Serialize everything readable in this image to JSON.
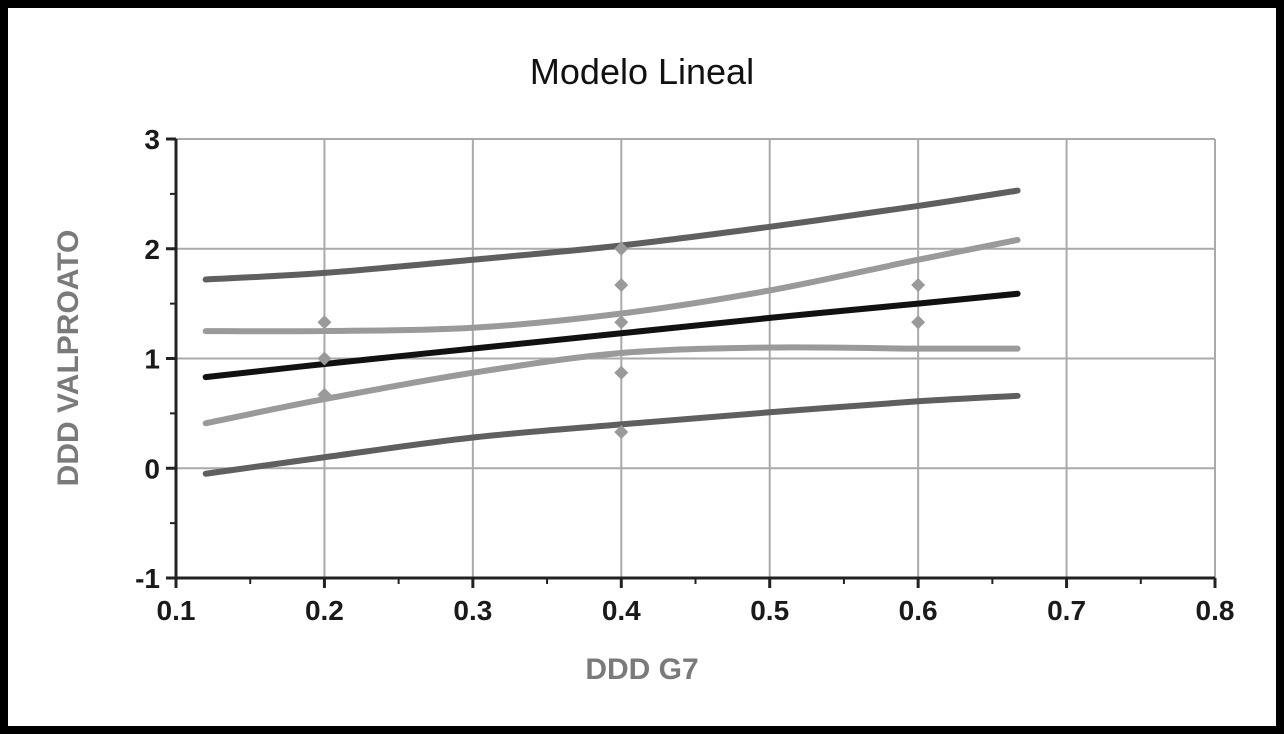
{
  "chart_data": {
    "type": "line",
    "title": "Modelo Lineal",
    "xlabel": "DDD G7",
    "ylabel": "DDD VALPROATO",
    "xlim": [
      0.1,
      0.8
    ],
    "ylim": [
      -1,
      3
    ],
    "x_ticks": [
      0.1,
      0.2,
      0.3,
      0.4,
      0.5,
      0.6,
      0.7,
      0.8
    ],
    "y_ticks": [
      -1,
      0,
      1,
      2,
      3
    ],
    "x_tick_labels": [
      "0.1",
      "0.2",
      "0.3",
      "0.4",
      "0.5",
      "0.6",
      "0.7",
      "0.8"
    ],
    "y_tick_labels": [
      "-1",
      "0",
      "1",
      "2",
      "3"
    ],
    "grid": true,
    "legend": "none",
    "series": [
      {
        "role": "prediction-upper",
        "color": "#5f5f5f",
        "x": [
          0.12,
          0.2,
          0.3,
          0.4,
          0.5,
          0.6,
          0.667
        ],
        "y": [
          1.72,
          1.78,
          1.9,
          2.03,
          2.2,
          2.39,
          2.53
        ]
      },
      {
        "role": "confidence-upper",
        "color": "#9a9a9a",
        "x": [
          0.12,
          0.2,
          0.3,
          0.4,
          0.5,
          0.6,
          0.667
        ],
        "y": [
          1.25,
          1.25,
          1.28,
          1.41,
          1.62,
          1.9,
          2.08
        ]
      },
      {
        "role": "fit",
        "color": "#111111",
        "x": [
          0.12,
          0.2,
          0.3,
          0.4,
          0.5,
          0.6,
          0.667
        ],
        "y": [
          0.83,
          0.95,
          1.09,
          1.23,
          1.37,
          1.5,
          1.59
        ]
      },
      {
        "role": "confidence-lower",
        "color": "#9a9a9a",
        "x": [
          0.12,
          0.2,
          0.3,
          0.4,
          0.5,
          0.6,
          0.667
        ],
        "y": [
          0.41,
          0.63,
          0.87,
          1.05,
          1.1,
          1.09,
          1.09
        ]
      },
      {
        "role": "prediction-lower",
        "color": "#5f5f5f",
        "x": [
          0.12,
          0.2,
          0.3,
          0.4,
          0.5,
          0.6,
          0.667
        ],
        "y": [
          -0.05,
          0.1,
          0.28,
          0.4,
          0.51,
          0.61,
          0.66
        ]
      }
    ],
    "points": {
      "color": "#9a9a9a",
      "x": [
        0.2,
        0.2,
        0.2,
        0.4,
        0.4,
        0.4,
        0.4,
        0.4,
        0.6,
        0.6
      ],
      "y": [
        1.33,
        1.0,
        0.67,
        2.0,
        1.67,
        1.33,
        0.87,
        0.33,
        1.67,
        1.33
      ]
    },
    "colors": {
      "grid": "#aaaaaa",
      "axis": "#222222"
    }
  }
}
